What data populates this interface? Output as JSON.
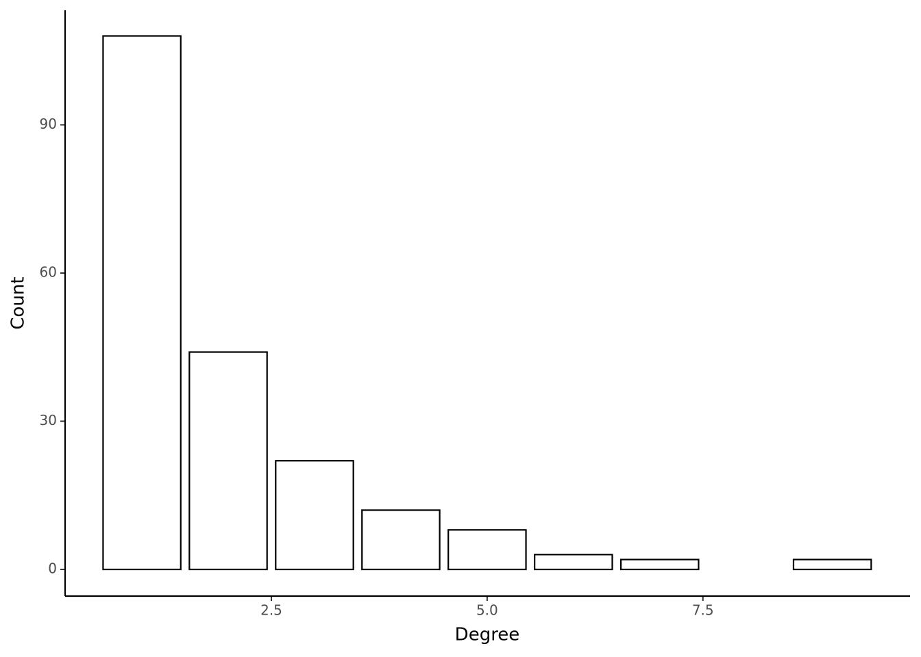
{
  "chart_data": {
    "type": "bar",
    "x": [
      1,
      2,
      3,
      4,
      5,
      6,
      7,
      9
    ],
    "values": [
      108,
      44,
      22,
      12,
      8,
      3,
      2,
      2
    ],
    "xlabel": "Degree",
    "ylabel": "Count",
    "xlim": [
      0.11,
      9.9
    ],
    "ylim": [
      -5.4,
      113.2
    ],
    "xticks": [
      2.5,
      {
        "value": 5,
        "label": "5.0"
      },
      {
        "value": 7.5,
        "label": "7.5"
      }
    ],
    "yticks": [
      0,
      30,
      60,
      90
    ],
    "fill": "#ffffff",
    "stroke": "#000000",
    "grid": false
  }
}
